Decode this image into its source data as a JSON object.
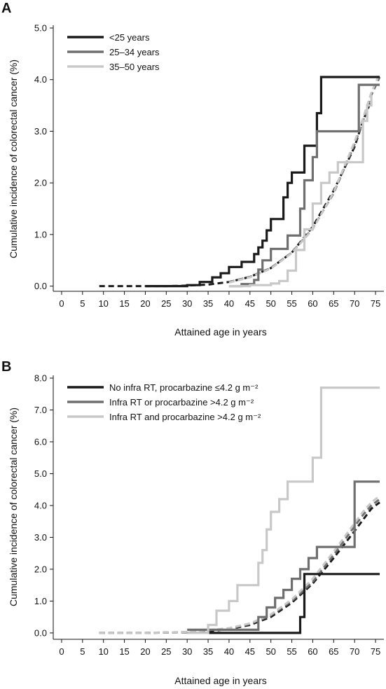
{
  "chart_data": [
    {
      "type": "line",
      "panel_label": "A",
      "xlabel": "Attained age in years",
      "ylabel": "Cumulative incidence of colorectal cancer (%)",
      "xlim": [
        -2,
        77
      ],
      "ylim": [
        -0.1,
        5.0
      ],
      "xticks": [
        0,
        5,
        10,
        15,
        20,
        25,
        30,
        35,
        40,
        45,
        50,
        55,
        60,
        65,
        70,
        75
      ],
      "yticks": [
        0.0,
        1.0,
        2.0,
        3.0,
        4.0,
        5.0
      ],
      "ytick_labels": [
        "0.0",
        "1.0",
        "2.0",
        "3.0",
        "4.0",
        "5.0"
      ],
      "legend_position": "top-left",
      "grid": false,
      "series": [
        {
          "name": "<25 years",
          "color": "#1a1a1a",
          "style": "step",
          "x": [
            20,
            30,
            33,
            36,
            38,
            40,
            43,
            46,
            47,
            48,
            49,
            50,
            52,
            53,
            54,
            55,
            58,
            60,
            61,
            62,
            63,
            76
          ],
          "y": [
            0.0,
            0.02,
            0.08,
            0.17,
            0.25,
            0.37,
            0.47,
            0.62,
            0.75,
            0.88,
            1.08,
            1.3,
            1.3,
            1.72,
            2.0,
            2.2,
            2.72,
            2.72,
            3.35,
            4.05,
            4.05,
            4.05
          ]
        },
        {
          "name": "25–34 years",
          "color": "#6f6f6f",
          "style": "step",
          "x": [
            40,
            43,
            46,
            47,
            48,
            50,
            52,
            54,
            56,
            57,
            58,
            60,
            61,
            62,
            64,
            70,
            71,
            72,
            73,
            74,
            76
          ],
          "y": [
            0.0,
            0.04,
            0.12,
            0.32,
            0.5,
            0.72,
            0.72,
            0.98,
            0.98,
            1.5,
            2.05,
            2.5,
            3.0,
            3.0,
            3.0,
            3.0,
            3.9,
            3.9,
            3.9,
            3.9,
            3.9
          ]
        },
        {
          "name": "35–50 years",
          "color": "#c8c8c8",
          "style": "step",
          "x": [
            40,
            45,
            50,
            52,
            54,
            56,
            58,
            60,
            62,
            64,
            66,
            68,
            70,
            72,
            73,
            74
          ],
          "y": [
            0.0,
            0.02,
            0.05,
            0.1,
            0.3,
            0.7,
            1.1,
            1.6,
            2.0,
            2.2,
            2.4,
            2.4,
            2.4,
            3.2,
            3.5,
            3.7
          ]
        }
      ],
      "fitted_curves": [
        {
          "color": "#1a1a1a",
          "x": [
            9,
            15,
            20,
            25,
            30,
            35,
            40,
            45,
            50,
            55,
            60,
            65,
            70,
            72,
            74
          ],
          "y": [
            0.0,
            0.0,
            0.0,
            0.0,
            0.01,
            0.03,
            0.08,
            0.18,
            0.35,
            0.65,
            1.15,
            1.85,
            2.7,
            3.2,
            3.6
          ]
        },
        {
          "color": "#6f6f6f",
          "x": [
            40,
            45,
            50,
            55,
            60,
            65,
            70,
            72,
            74,
            76
          ],
          "y": [
            0.08,
            0.18,
            0.35,
            0.65,
            1.12,
            1.8,
            2.75,
            3.2,
            3.7,
            4.05
          ]
        },
        {
          "color": "#c8c8c8",
          "x": [
            40,
            45,
            50,
            55,
            60,
            65,
            70,
            72,
            74,
            76
          ],
          "y": [
            0.07,
            0.17,
            0.34,
            0.64,
            1.1,
            1.82,
            2.8,
            3.25,
            3.75,
            4.12
          ]
        }
      ]
    },
    {
      "type": "line",
      "panel_label": "B",
      "xlabel": "Attained age in years",
      "ylabel": "Cumulative incidence of colorectal cancer (%)",
      "xlim": [
        -2,
        77
      ],
      "ylim": [
        -0.2,
        8.0
      ],
      "xticks": [
        0,
        5,
        10,
        15,
        20,
        25,
        30,
        35,
        40,
        45,
        50,
        55,
        60,
        65,
        70,
        75
      ],
      "yticks": [
        0.0,
        1.0,
        2.0,
        3.0,
        4.0,
        5.0,
        6.0,
        7.0,
        8.0
      ],
      "ytick_labels": [
        "0.0",
        "1.0",
        "2.0",
        "3.0",
        "4.0",
        "5.0",
        "6.0",
        "7.0",
        "8.0"
      ],
      "legend_position": "top-left",
      "grid": false,
      "series": [
        {
          "name": "No infra RT, procarbazine ≤4.2 g m⁻²",
          "color": "#1a1a1a",
          "style": "step",
          "x": [
            30,
            57,
            58,
            59,
            76
          ],
          "y": [
            0.0,
            0.5,
            1.85,
            1.85,
            1.85
          ]
        },
        {
          "name": "Infra RT or procarbazine >4.2 g m⁻²",
          "color": "#6f6f6f",
          "style": "step",
          "x": [
            30,
            40,
            47,
            49,
            51,
            53,
            55,
            57,
            59,
            61,
            62,
            70,
            72,
            76
          ],
          "y": [
            0.1,
            0.1,
            0.5,
            0.8,
            1.1,
            1.35,
            1.7,
            2.0,
            2.35,
            2.7,
            2.7,
            4.75,
            4.75,
            4.75
          ]
        },
        {
          "name": "Infra RT and procarbazine >4.2 g m⁻²",
          "color": "#c8c8c8",
          "style": "step",
          "x": [
            30,
            35,
            37,
            40,
            42,
            45,
            47,
            48,
            49,
            50,
            52,
            54,
            57,
            58,
            60,
            62,
            63,
            76
          ],
          "y": [
            0.0,
            0.25,
            0.7,
            1.0,
            1.5,
            1.5,
            2.2,
            2.6,
            3.25,
            3.8,
            4.2,
            4.75,
            4.75,
            4.75,
            5.5,
            7.7,
            7.7,
            7.7
          ]
        }
      ],
      "fitted_curves": [
        {
          "color": "#1a1a1a",
          "x": [
            9,
            15,
            20,
            25,
            30,
            35,
            40,
            45,
            50,
            55,
            60,
            65,
            70,
            72,
            74,
            76
          ],
          "y": [
            0.0,
            0.0,
            0.0,
            0.01,
            0.02,
            0.05,
            0.12,
            0.25,
            0.5,
            0.95,
            1.55,
            2.35,
            3.2,
            3.55,
            3.9,
            4.1
          ]
        },
        {
          "color": "#6f6f6f",
          "x": [
            9,
            20,
            30,
            40,
            45,
            50,
            55,
            60,
            65,
            70,
            72,
            74,
            76
          ],
          "y": [
            0.0,
            0.0,
            0.03,
            0.14,
            0.28,
            0.55,
            1.0,
            1.6,
            2.45,
            3.35,
            3.7,
            4.0,
            4.2
          ]
        },
        {
          "color": "#c8c8c8",
          "x": [
            9,
            20,
            30,
            40,
            45,
            50,
            55,
            60,
            65,
            70,
            72,
            74,
            76
          ],
          "y": [
            0.0,
            0.0,
            0.03,
            0.15,
            0.3,
            0.58,
            1.05,
            1.7,
            2.55,
            3.45,
            3.8,
            4.1,
            4.3
          ]
        }
      ]
    }
  ]
}
